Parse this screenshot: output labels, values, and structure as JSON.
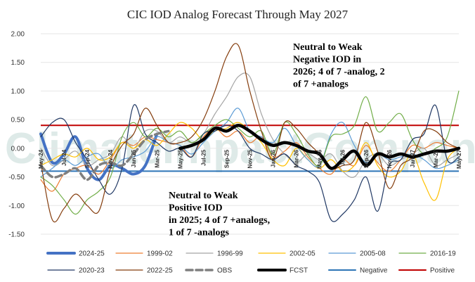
{
  "chart_data": {
    "type": "line",
    "title": "CIC IOD Analog Forecast Through May 2027",
    "watermark": "ClimateImpactCompany",
    "ylim": [
      -1.5,
      2.0
    ],
    "yticks": [
      "2.00",
      "1.50",
      "1.00",
      "0.50",
      "0.00",
      "-0.50",
      "-1.00",
      "-1.50"
    ],
    "ytick_values": [
      2.0,
      1.5,
      1.0,
      0.5,
      0.0,
      -0.5,
      -1.0,
      -1.5
    ],
    "categories": [
      "May-24",
      "Jun-24",
      "Jul-24",
      "Aug-24",
      "Sep-24",
      "Oct-24",
      "Nov-24",
      "Dec-24",
      "Jan-25",
      "Feb-25",
      "Mar-25",
      "Apr-25",
      "May-25",
      "Jun-25",
      "Jul-25",
      "Aug-25",
      "Sep-25",
      "Oct-25",
      "Nov-25",
      "Dec-25",
      "Jan-26",
      "Feb-26",
      "Mar-26",
      "Apr-26",
      "May-26",
      "Jun-26",
      "Jul-26",
      "Aug-26",
      "Sep-26",
      "Oct-26",
      "Nov-26",
      "Dec-26",
      "Jan-27",
      "Feb-27",
      "Mar-27",
      "Apr-27",
      "May-27"
    ],
    "xtick_labels": [
      "May-24",
      "Jul-24",
      "Sep-24",
      "Nov-24",
      "Jan-25",
      "Mar-25",
      "May-25",
      "Jul-25",
      "Sep-25",
      "Nov-25",
      "Jan-26",
      "Mar-26",
      "May-26",
      "Jul-26",
      "Sep-26",
      "Nov-26",
      "Jan-27",
      "Mar-27",
      "May-27"
    ],
    "series": [
      {
        "name": "2024-25",
        "color": "#4472c4",
        "width": 4,
        "dash": "",
        "values": [
          0.25,
          -0.25,
          -0.1,
          0.2,
          -0.35,
          -0.55,
          -0.3,
          -0.35,
          -0.45,
          -0.3,
          0.25,
          null,
          null,
          null,
          null,
          null,
          null,
          null,
          null,
          null,
          null,
          null,
          null,
          null,
          null,
          null,
          null,
          null,
          null,
          null,
          null,
          null,
          null,
          null,
          null,
          null,
          null
        ]
      },
      {
        "name": "1999-02",
        "color": "#ed7d31",
        "width": 1.2,
        "dash": "",
        "values": [
          -0.55,
          -0.75,
          -0.45,
          -0.35,
          -0.3,
          -0.45,
          -0.2,
          0.1,
          0.05,
          0.2,
          0.15,
          0.1,
          0.05,
          -0.15,
          0.2,
          0.35,
          0.2,
          0.3,
          0.1,
          0.2,
          -0.15,
          -0.05,
          0.1,
          -0.15,
          -0.35,
          -0.45,
          -0.2,
          -0.3,
          0.05,
          -0.25,
          -0.4,
          -0.2,
          0.05,
          0.0,
          0.1,
          0.05,
          0.0
        ]
      },
      {
        "name": "1996-99",
        "color": "#a5a5a5",
        "width": 1.2,
        "dash": "",
        "values": [
          0.0,
          -0.3,
          -0.2,
          -0.05,
          -0.3,
          -0.2,
          -0.1,
          0.2,
          0.0,
          0.3,
          0.3,
          0.1,
          0.2,
          0.1,
          0.25,
          0.6,
          0.9,
          1.25,
          1.25,
          0.6,
          0.15,
          -0.1,
          -0.25,
          -0.1,
          -0.2,
          -0.1,
          -0.4,
          -0.5,
          -0.2,
          -0.1,
          -0.3,
          -0.2,
          -0.1,
          0.0,
          -0.3,
          -0.2,
          -0.1
        ]
      },
      {
        "name": "2002-05",
        "color": "#ffc000",
        "width": 1.2,
        "dash": "",
        "values": [
          -0.3,
          -0.2,
          -0.1,
          -0.15,
          0.0,
          -0.2,
          -0.15,
          0.1,
          0.0,
          0.15,
          0.05,
          0.25,
          0.45,
          0.35,
          0.15,
          0.3,
          0.35,
          0.45,
          0.3,
          0.1,
          -0.2,
          -0.3,
          0.0,
          -0.2,
          -0.35,
          -0.2,
          -0.4,
          -0.3,
          0.1,
          -0.3,
          -0.5,
          -0.4,
          -0.1,
          -0.6,
          -0.9,
          -0.2,
          0.0
        ]
      },
      {
        "name": "2005-08",
        "color": "#5b9bd5",
        "width": 1.2,
        "dash": "",
        "values": [
          -0.5,
          -0.35,
          -0.2,
          -0.3,
          -0.15,
          -0.1,
          -0.35,
          -0.2,
          -0.15,
          -0.05,
          0.2,
          0.1,
          0.05,
          -0.1,
          0.1,
          0.3,
          0.45,
          0.7,
          0.3,
          0.2,
          0.1,
          0.35,
          0.05,
          -0.2,
          -0.3,
          0.25,
          0.45,
          0.05,
          -0.25,
          -0.1,
          -0.2,
          -0.15,
          -0.1,
          -0.2,
          -0.35,
          -0.3,
          -0.2
        ]
      },
      {
        "name": "2016-19",
        "color": "#70ad47",
        "width": 1.2,
        "dash": "",
        "values": [
          -0.5,
          -0.65,
          -0.9,
          -1.15,
          -0.9,
          -0.75,
          -0.5,
          0.2,
          0.45,
          0.2,
          0.35,
          0.2,
          0.3,
          0.1,
          0.25,
          0.4,
          0.5,
          0.35,
          0.2,
          0.3,
          -0.1,
          0.45,
          0.25,
          -0.1,
          -0.3,
          0.2,
          0.25,
          0.4,
          0.9,
          0.3,
          0.45,
          0.6,
          0.15,
          -0.1,
          0.0,
          0.2,
          1.0
        ]
      },
      {
        "name": "2020-23",
        "color": "#203864",
        "width": 1.2,
        "dash": "",
        "values": [
          0.2,
          0.45,
          0.5,
          0.1,
          -0.2,
          -0.55,
          -0.8,
          -0.35,
          0.75,
          0.25,
          0.1,
          -0.05,
          0.0,
          -0.15,
          0.25,
          0.3,
          0.4,
          0.3,
          0.0,
          -0.1,
          -0.2,
          -0.1,
          -0.3,
          -0.4,
          -0.6,
          -1.25,
          -1.15,
          -0.9,
          -0.5,
          -1.1,
          -0.3,
          -0.2,
          0.15,
          0.25,
          0.75,
          -0.2,
          -0.15
        ]
      },
      {
        "name": "2022-25",
        "color": "#843c0c",
        "width": 1.2,
        "dash": "",
        "values": [
          -0.25,
          -1.25,
          -1.05,
          -0.8,
          -1.0,
          -1.1,
          -0.35,
          0.05,
          0.25,
          0.7,
          0.4,
          0.1,
          0.1,
          0.2,
          0.5,
          1.0,
          1.6,
          1.8,
          1.0,
          0.3,
          -0.2,
          0.45,
          0.35,
          0.1,
          -0.1,
          -0.35,
          -0.3,
          -0.2,
          0.45,
          -0.05,
          -0.7,
          -0.3,
          -0.15,
          0.3,
          0.3,
          0.1,
          0.0
        ]
      },
      {
        "name": "OBS",
        "color": "#7f7f7f",
        "width": 3.5,
        "dash": "9,5",
        "values": [
          -0.3,
          -0.5,
          -0.45,
          -0.35,
          -0.55,
          -0.3,
          -0.25,
          -0.3,
          -0.1,
          0.15,
          0.25,
          0.3,
          null,
          null,
          null,
          null,
          null,
          null,
          null,
          null,
          null,
          null,
          null,
          null,
          null,
          null,
          null,
          null,
          null,
          null,
          null,
          null,
          null,
          null,
          null,
          null,
          null
        ]
      },
      {
        "name": "FCST",
        "color": "#000000",
        "width": 4.5,
        "dash": "",
        "values": [
          null,
          null,
          null,
          null,
          null,
          null,
          null,
          null,
          null,
          null,
          null,
          null,
          0.0,
          0.05,
          0.15,
          0.35,
          0.3,
          0.4,
          0.3,
          0.15,
          0.05,
          0.1,
          0.05,
          -0.05,
          -0.1,
          -0.35,
          -0.2,
          -0.05,
          -0.3,
          -0.1,
          -0.15,
          -0.1,
          -0.15,
          -0.1,
          -0.05,
          -0.05,
          0.0
        ]
      }
    ],
    "thresholds": [
      {
        "name": "Negative",
        "value": -0.4,
        "color": "#2e75b6"
      },
      {
        "name": "Positive",
        "value": 0.4,
        "color": "#c00000"
      }
    ],
    "annotations": [
      {
        "id": "neg",
        "lines": [
          "Neutral to Weak",
          "Negative IOD in",
          "2026; 4 of 7 -analog, 2",
          "of 7 +analogs"
        ]
      },
      {
        "id": "pos",
        "lines": [
          "Neutral to Weak",
          "Positive IOD",
          "in 2025; 4 of 7 +analogs,",
          "1 of 7 -analogs"
        ]
      }
    ],
    "legend_order": [
      "2024-25",
      "1999-02",
      "1996-99",
      "2002-05",
      "2005-08",
      "2016-19",
      "2020-23",
      "2022-25",
      "OBS",
      "FCST",
      "Negative",
      "Positive"
    ]
  }
}
